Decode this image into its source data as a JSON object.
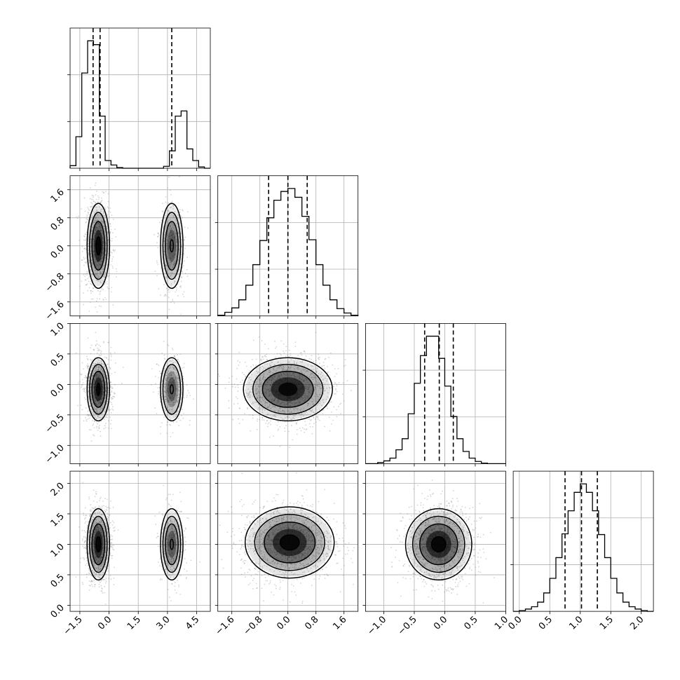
{
  "chart_data": {
    "type": "corner",
    "title": "",
    "style": {
      "grid": true,
      "quantile_line_color": "#000000",
      "histogram_color": "#000000",
      "scatter_color": "#888888",
      "contour_color": "#000000",
      "density_color": "#000000"
    },
    "parameters": [
      {
        "index": 0,
        "range": [
          -2.0,
          5.2
        ],
        "ticks": [
          -1.5,
          0.0,
          1.5,
          3.0,
          4.5
        ],
        "tick_labels": [
          "−1.5",
          "0.0",
          "1.5",
          "3.0",
          "4.5"
        ],
        "quantiles": [
          -0.82,
          -0.46,
          3.22
        ],
        "modes": [
          {
            "center": -0.55,
            "sd": 0.25,
            "weight": 0.72
          },
          {
            "center": 3.22,
            "sd": 0.25,
            "weight": 0.28
          }
        ],
        "histogram": {
          "bins": [
            -2.0,
            -1.7,
            -1.4,
            -1.1,
            -0.8,
            -0.5,
            -0.2,
            0.1,
            0.4,
            0.7,
            1.0,
            1.3,
            1.6,
            1.9,
            2.2,
            2.5,
            2.8,
            3.1,
            3.4,
            3.7,
            4.0,
            4.3,
            4.6,
            4.9,
            5.2
          ],
          "counts": [
            0.4,
            4.9,
            14.8,
            19.8,
            19.2,
            8.1,
            1.2,
            0.5,
            0.1,
            0,
            0,
            0,
            0,
            0,
            0,
            0,
            0.3,
            2.7,
            8.1,
            8.9,
            3.0,
            1.2,
            0.2,
            0
          ]
        }
      },
      {
        "index": 1,
        "range": [
          -2.0,
          2.0
        ],
        "ticks": [
          -1.6,
          -0.8,
          0.0,
          0.8,
          1.6
        ],
        "tick_labels": [
          "−1.6",
          "−0.8",
          "0.0",
          "0.8",
          "1.6"
        ],
        "quantiles": [
          -0.55,
          0.0,
          0.55
        ],
        "histogram": {
          "bins": [
            -2.0,
            -1.8,
            -1.6,
            -1.4,
            -1.2,
            -1.0,
            -0.8,
            -0.6,
            -0.4,
            -0.2,
            0.0,
            0.2,
            0.4,
            0.6,
            0.8,
            1.0,
            1.2,
            1.4,
            1.6,
            1.8,
            2.0
          ],
          "counts": [
            0.1,
            0.5,
            1.1,
            2.2,
            4.2,
            7.0,
            10.3,
            13.4,
            15.8,
            17.0,
            17.4,
            16.2,
            13.6,
            10.4,
            7.0,
            4.2,
            2.2,
            1.0,
            0.4,
            0.1
          ]
        }
      },
      {
        "index": 2,
        "range": [
          -1.3,
          1.0
        ],
        "ticks": [
          -1.0,
          -0.5,
          0.0,
          0.5,
          1.0
        ],
        "tick_labels": [
          "−1.0",
          "−0.5",
          "0.0",
          "0.5",
          "1.0"
        ],
        "quantiles": [
          -0.33,
          -0.09,
          0.14
        ],
        "histogram": {
          "bins": [
            -1.3,
            -1.2,
            -1.1,
            -1.0,
            -0.9,
            -0.8,
            -0.7,
            -0.6,
            -0.5,
            -0.4,
            -0.3,
            -0.2,
            -0.1,
            0.0,
            0.1,
            0.2,
            0.3,
            0.4,
            0.5,
            0.6,
            0.7,
            0.8,
            0.9,
            1.0
          ],
          "counts": [
            0,
            0,
            0.2,
            0.5,
            1.0,
            2.5,
            4.5,
            9.0,
            14.5,
            19.5,
            23.0,
            23.0,
            19.0,
            14.0,
            8.5,
            4.5,
            2.2,
            1.0,
            0.4,
            0.1,
            0,
            0,
            0
          ]
        }
      },
      {
        "index": 3,
        "range": [
          -0.1,
          2.2
        ],
        "ticks": [
          0.0,
          0.5,
          1.0,
          1.5,
          2.0
        ],
        "tick_labels": [
          "0.0",
          "0.5",
          "1.0",
          "1.5",
          "2.0"
        ],
        "quantiles": [
          0.75,
          1.02,
          1.28
        ],
        "histogram": {
          "bins": [
            -0.1,
            0.0,
            0.1,
            0.2,
            0.3,
            0.4,
            0.5,
            0.6,
            0.7,
            0.8,
            0.9,
            1.0,
            1.1,
            1.2,
            1.3,
            1.4,
            1.5,
            1.6,
            1.7,
            1.8,
            1.9,
            2.0,
            2.1,
            2.2
          ],
          "counts": [
            0,
            0.1,
            0.3,
            0.6,
            1.2,
            2.4,
            4.3,
            7.0,
            10.1,
            13.1,
            15.5,
            16.6,
            15.5,
            13.1,
            10.0,
            7.0,
            4.3,
            2.4,
            1.2,
            0.6,
            0.3,
            0.1,
            0
          ]
        }
      }
    ],
    "panels": {
      "1-0": {
        "contour_levels": 4,
        "density_peak": [
          -0.55,
          0.0
        ]
      },
      "2-0": {
        "contour_levels": 3,
        "density_peak": [
          -0.55,
          -0.08
        ]
      },
      "2-1": {
        "contour_levels": 3,
        "density_peak": [
          0.0,
          -0.08
        ]
      },
      "3-0": {
        "contour_levels": 4,
        "density_peak": [
          -0.55,
          1.0
        ]
      },
      "3-1": {
        "contour_levels": 4,
        "density_peak": [
          0.05,
          1.03
        ]
      },
      "3-2": {
        "contour_levels": 4,
        "density_peak": [
          -0.1,
          1.0
        ]
      }
    }
  }
}
